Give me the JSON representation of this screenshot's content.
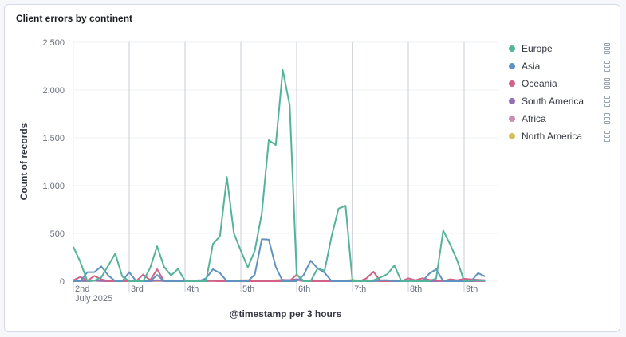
{
  "panel": {
    "title": "Client errors by continent"
  },
  "chart_data": {
    "type": "line",
    "title": "Client errors by continent",
    "xlabel": "@timestamp per 3 hours",
    "ylabel": "Count of records",
    "x_start": "2025-07-02 00:00",
    "x_interval_hours": 3,
    "x_tick_labels": [
      "2nd",
      "3rd",
      "4th",
      "5th",
      "6th",
      "7th",
      "8th",
      "9th"
    ],
    "x_sub_label": "July 2025",
    "y_ticks": [
      0,
      500,
      1000,
      1500,
      2000,
      2500
    ],
    "y_tick_labels": [
      "0",
      "500",
      "1,000",
      "1,500",
      "2,000",
      "2,500"
    ],
    "ylim": [
      0,
      2500
    ],
    "grid": true,
    "legend_position": "right",
    "series": [
      {
        "name": "Europe",
        "color": "#54b399",
        "values": [
          360,
          200,
          0,
          5,
          40,
          165,
          290,
          50,
          0,
          0,
          0,
          140,
          365,
          150,
          60,
          130,
          0,
          0,
          0,
          0,
          390,
          470,
          1090,
          500,
          320,
          145,
          320,
          710,
          1475,
          1425,
          2210,
          1840,
          70,
          0,
          0,
          135,
          110,
          470,
          760,
          790,
          0,
          0,
          0,
          10,
          40,
          75,
          165,
          0,
          0,
          0,
          0,
          0,
          30,
          530,
          385,
          220,
          0,
          10,
          10,
          5
        ]
      },
      {
        "name": "Asia",
        "color": "#6092c0",
        "values": [
          0,
          0,
          95,
          95,
          155,
          60,
          0,
          0,
          95,
          0,
          0,
          0,
          65,
          0,
          0,
          0,
          0,
          0,
          0,
          30,
          125,
          85,
          0,
          0,
          0,
          0,
          70,
          440,
          435,
          150,
          0,
          0,
          0,
          65,
          215,
          135,
          90,
          0,
          0,
          0,
          0,
          0,
          0,
          0,
          10,
          10,
          0,
          0,
          0,
          0,
          0,
          80,
          125,
          0,
          0,
          0,
          0,
          0,
          85,
          50
        ]
      },
      {
        "name": "Oceania",
        "color": "#d36086",
        "values": [
          10,
          45,
          5,
          55,
          20,
          0,
          0,
          0,
          0,
          0,
          70,
          10,
          125,
          0,
          0,
          0,
          0,
          0,
          0,
          0,
          5,
          0,
          0,
          0,
          0,
          0,
          0,
          0,
          0,
          0,
          0,
          0,
          70,
          0,
          0,
          0,
          0,
          0,
          0,
          0,
          10,
          0,
          30,
          100,
          0,
          0,
          0,
          0,
          30,
          10,
          30,
          15,
          10,
          0,
          20,
          10,
          25,
          20,
          15,
          10
        ]
      },
      {
        "name": "South America",
        "color": "#9170b8",
        "values": [
          5,
          5,
          0,
          5,
          5,
          0,
          0,
          0,
          0,
          5,
          5,
          0,
          10,
          5,
          5,
          0,
          0,
          5,
          10,
          5,
          5,
          0,
          0,
          0,
          0,
          0,
          5,
          5,
          0,
          5,
          15,
          10,
          20,
          5,
          0,
          0,
          5,
          0,
          0,
          0,
          5,
          0,
          0,
          5,
          0,
          5,
          0,
          0,
          5,
          0,
          5,
          0,
          0,
          5,
          0,
          0,
          5,
          0,
          5,
          5
        ]
      },
      {
        "name": "Africa",
        "color": "#ca8eae",
        "values": [
          0,
          5,
          0,
          5,
          0,
          0,
          0,
          0,
          0,
          0,
          5,
          0,
          5,
          0,
          0,
          0,
          0,
          0,
          0,
          5,
          0,
          0,
          0,
          0,
          0,
          0,
          0,
          5,
          0,
          5,
          5,
          5,
          10,
          0,
          0,
          0,
          0,
          0,
          0,
          0,
          0,
          5,
          0,
          5,
          0,
          0,
          0,
          0,
          0,
          5,
          0,
          0,
          0,
          0,
          5,
          0,
          0,
          0,
          0,
          0
        ]
      },
      {
        "name": "North America",
        "color": "#d6bf57",
        "values": [
          0,
          0,
          0,
          5,
          0,
          0,
          0,
          0,
          5,
          0,
          0,
          5,
          0,
          5,
          10,
          5,
          0,
          5,
          5,
          0,
          5,
          5,
          0,
          0,
          10,
          10,
          0,
          5,
          5,
          10,
          10,
          15,
          10,
          5,
          0,
          5,
          5,
          0,
          5,
          5,
          15,
          5,
          5,
          0,
          5,
          5,
          10,
          5,
          5,
          0,
          5,
          10,
          5,
          0,
          5,
          5,
          5,
          5,
          5,
          0
        ]
      }
    ]
  }
}
